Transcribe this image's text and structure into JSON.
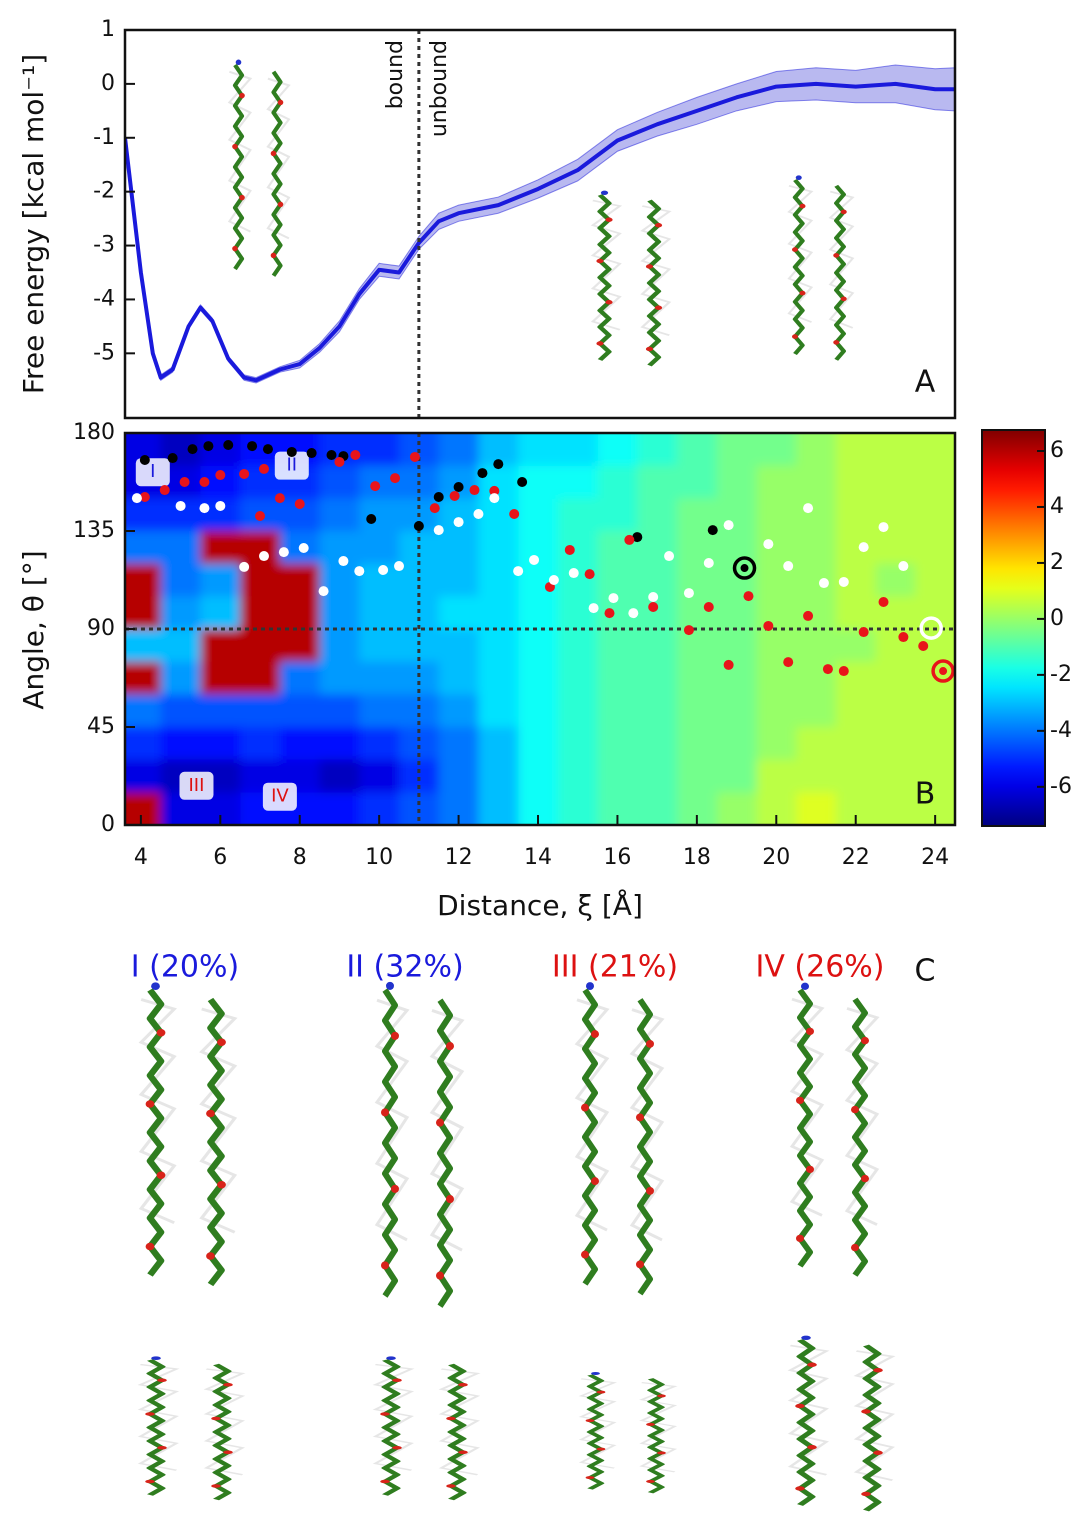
{
  "chart_data": [
    {
      "type": "line",
      "ylabel": "Free energy [kcal mol⁻¹]",
      "panel": "A",
      "annotations": [
        "bound",
        "unbound"
      ],
      "vline": 11,
      "xlim": [
        3.6,
        24.5
      ],
      "ylim": [
        -6.2,
        1
      ],
      "yticks": [
        -5,
        -4,
        -3,
        -2,
        -1,
        0,
        1
      ],
      "x": [
        3.6,
        4.0,
        4.3,
        4.5,
        4.8,
        5.2,
        5.5,
        5.8,
        6.2,
        6.6,
        6.9,
        7.5,
        8.0,
        8.5,
        9.0,
        9.5,
        10.0,
        10.5,
        11.0,
        11.5,
        12.0,
        13.0,
        14.0,
        15.0,
        16.0,
        17.0,
        18.0,
        19.0,
        20.0,
        21.0,
        22.0,
        23.0,
        24.0,
        24.5
      ],
      "values": [
        -1.0,
        -3.5,
        -5.0,
        -5.45,
        -5.3,
        -4.5,
        -4.15,
        -4.4,
        -5.1,
        -5.45,
        -5.5,
        -5.3,
        -5.2,
        -4.9,
        -4.5,
        -3.9,
        -3.45,
        -3.5,
        -2.95,
        -2.55,
        -2.4,
        -2.25,
        -1.95,
        -1.6,
        -1.05,
        -0.75,
        -0.5,
        -0.25,
        -0.05,
        0.0,
        -0.05,
        0.0,
        -0.1,
        -0.1
      ],
      "errors": [
        0.05,
        0.05,
        0.05,
        0.05,
        0.05,
        0.05,
        0.05,
        0.05,
        0.05,
        0.05,
        0.05,
        0.05,
        0.07,
        0.08,
        0.1,
        0.1,
        0.12,
        0.12,
        0.12,
        0.15,
        0.15,
        0.15,
        0.17,
        0.2,
        0.2,
        0.22,
        0.25,
        0.25,
        0.28,
        0.3,
        0.3,
        0.35,
        0.38,
        0.4
      ],
      "color": "#1a1adc",
      "band_color": "#b9b9f0"
    },
    {
      "type": "heatmap",
      "xlabel": "Distance, ξ [Å]",
      "ylabel": "Angle, θ [°]",
      "panel": "B",
      "colormap": "jet",
      "vline": 11,
      "hline": 90,
      "xlim": [
        3.6,
        24.5
      ],
      "ylim": [
        0,
        180
      ],
      "xticks": [
        4,
        6,
        8,
        10,
        12,
        14,
        16,
        18,
        20,
        22,
        24
      ],
      "yticks": [
        0,
        45,
        90,
        135,
        180
      ],
      "zlim": [
        -7.4,
        6.75
      ],
      "zticks": [
        -6,
        -4,
        -2,
        0,
        2,
        4,
        6
      ],
      "regions": [
        {
          "label": "I",
          "x": 4.3,
          "y": 162,
          "color": "#1a1adc"
        },
        {
          "label": "II",
          "x": 7.8,
          "y": 165,
          "color": "#1a1adc"
        },
        {
          "label": "III",
          "x": 5.4,
          "y": 18,
          "color": "#dd1111"
        },
        {
          "label": "IV",
          "x": 7.5,
          "y": 13,
          "color": "#dd1111"
        }
      ],
      "grid_x": [
        4,
        5,
        6,
        7,
        8,
        9,
        10,
        11,
        12,
        13,
        14,
        15,
        16,
        17,
        18,
        19,
        20,
        21,
        22,
        23,
        24
      ],
      "grid_y": [
        172.5,
        157.5,
        142.5,
        127.5,
        112.5,
        97.5,
        82.5,
        67.5,
        52.5,
        37.5,
        22.5,
        7.5
      ],
      "z": [
        [
          -6,
          -6.5,
          -6,
          -5.5,
          -5.5,
          -5,
          -5,
          -4.5,
          -4,
          -3,
          -2.5,
          -2.5,
          -2,
          -1.5,
          -1,
          -0.5,
          -0.5,
          0,
          0.5,
          0.5,
          0.5
        ],
        [
          -6,
          -6,
          -5.5,
          -5,
          -5,
          -4.5,
          -4,
          -4,
          -3.5,
          -2.5,
          -2,
          -2,
          -1.5,
          -1,
          -1,
          -0.5,
          0,
          0,
          0.5,
          0.5,
          0.5
        ],
        [
          -5,
          -5,
          -5,
          -4.5,
          -4.5,
          -4,
          -3.5,
          -3.5,
          -3,
          -2.5,
          -2,
          -1.5,
          -1.5,
          -1,
          -0.5,
          -0.5,
          0,
          0,
          0.5,
          0.5,
          0.5
        ],
        [
          -4,
          -4,
          6,
          6,
          -4,
          -3.5,
          -3.5,
          -3,
          -3,
          -2.5,
          -2,
          -1.5,
          -1,
          -1,
          -0.5,
          -0.5,
          0,
          0,
          0.5,
          0.5,
          0.5
        ],
        [
          6,
          -4,
          -3.5,
          6,
          6,
          -3.5,
          -3,
          -3,
          -3,
          -2.5,
          -2,
          -1.5,
          -1,
          -1,
          -0.5,
          -0.5,
          0,
          0,
          0.5,
          0,
          0.5
        ],
        [
          6,
          -3.5,
          -3,
          6,
          6,
          -3.5,
          -3,
          -3,
          -2.5,
          -2.5,
          -2,
          -1.5,
          -1,
          -1,
          -0.5,
          -0.5,
          0,
          0,
          0.5,
          0.5,
          0.5
        ],
        [
          -3,
          -3,
          6,
          6,
          6,
          -3.5,
          -3,
          -3,
          -3,
          -2.5,
          -2,
          -1.5,
          -1,
          -1,
          -0.5,
          -0.5,
          0,
          0,
          0,
          0.5,
          0.5
        ],
        [
          6,
          -3.5,
          6,
          6,
          -4,
          -3.5,
          -3.5,
          -3.5,
          -3,
          -2.5,
          -2,
          -1.5,
          -1,
          -1,
          -0.5,
          -0.5,
          0,
          0,
          0.5,
          0.5,
          0.5
        ],
        [
          -4,
          -4.5,
          -4.5,
          -4.5,
          -4.5,
          -4.5,
          -4,
          -4,
          -3.5,
          -2.5,
          -2,
          -1.5,
          -1,
          -1,
          -0.5,
          -0.5,
          0,
          0,
          0.5,
          0.5,
          0.5
        ],
        [
          -5,
          -5.5,
          -5.5,
          -5,
          -5.5,
          -5.5,
          -5,
          -4.5,
          -4,
          -3,
          -2,
          -1.5,
          -1,
          -1,
          -0.5,
          -0.5,
          0,
          0.5,
          0.5,
          0.5,
          0.5
        ],
        [
          -6,
          -6.5,
          -6.5,
          -6,
          -6,
          -6.5,
          -6,
          -5,
          -4,
          -3,
          -2,
          -1.5,
          -1,
          -1,
          -0.5,
          -0.5,
          0.5,
          0.5,
          0.5,
          0.5,
          0.5
        ],
        [
          6,
          -6,
          -6,
          -5.5,
          -5.5,
          -5.5,
          -5,
          -4.5,
          -4,
          -3,
          -2,
          -1.5,
          -1,
          -1,
          -0.5,
          0,
          0.5,
          1,
          0.5,
          0.5,
          0.5
        ]
      ],
      "series": [
        {
          "color": "#000000",
          "x": [
            4.1,
            4.8,
            5.3,
            5.7,
            6.2,
            6.8,
            7.2,
            7.8,
            8.3,
            8.8,
            9.1,
            9.8,
            11.0,
            11.5,
            12.0,
            12.6,
            13.0,
            13.6,
            16.5,
            18.4
          ],
          "values": [
            167.6,
            168.5,
            172.6,
            174.0,
            174.5,
            174.0,
            172.6,
            171.3,
            170.8,
            169.9,
            169.4,
            140.5,
            137.3,
            150.6,
            155.2,
            161.6,
            165.7,
            157.5,
            132.2,
            135.4
          ]
        },
        {
          "color": "#e8141a",
          "x": [
            4.1,
            4.6,
            5.1,
            5.6,
            6.0,
            6.6,
            7.1,
            7.5,
            8.0,
            7.0,
            9.0,
            9.4,
            9.9,
            10.4,
            10.9,
            11.4,
            11.9,
            12.4,
            12.9,
            13.4,
            14.3,
            14.8,
            15.3,
            15.8,
            16.3,
            16.9,
            17.8,
            18.3,
            18.8,
            19.3,
            19.8,
            20.3,
            20.8,
            21.3,
            21.7,
            22.2,
            22.7,
            23.2,
            23.7
          ],
          "values": [
            150.6,
            153.8,
            157.5,
            157.5,
            160.7,
            161.2,
            163.5,
            150.1,
            147.4,
            141.9,
            166.7,
            169.9,
            155.6,
            159.3,
            169.0,
            145.5,
            151.1,
            153.8,
            153.4,
            142.8,
            109.3,
            126.3,
            115.2,
            97.3,
            130.9,
            100.1,
            89.5,
            100.1,
            73.5,
            105.1,
            91.4,
            74.8,
            96.0,
            71.6,
            70.7,
            88.6,
            102.4,
            86.3,
            82.2
          ]
        },
        {
          "color": "#ffffff",
          "x": [
            3.9,
            5.0,
            5.6,
            6.0,
            6.6,
            7.1,
            7.6,
            8.1,
            8.6,
            9.1,
            9.5,
            10.1,
            10.5,
            11.5,
            12.0,
            12.5,
            12.9,
            13.5,
            13.9,
            14.4,
            14.9,
            15.4,
            15.9,
            16.4,
            16.9,
            17.3,
            17.8,
            18.3,
            18.8,
            19.8,
            20.3,
            20.8,
            21.2,
            21.7,
            22.2,
            22.7,
            23.2
          ],
          "values": [
            150.1,
            146.5,
            145.5,
            146.5,
            118.5,
            123.5,
            125.3,
            127.2,
            107.4,
            121.2,
            116.6,
            117.1,
            118.9,
            135.4,
            139.1,
            142.8,
            150.1,
            116.6,
            121.7,
            112.5,
            115.7,
            99.6,
            104.2,
            97.3,
            104.7,
            123.5,
            106.5,
            120.3,
            137.7,
            129.0,
            118.9,
            145.5,
            111.1,
            111.6,
            127.6,
            136.8,
            118.9
          ]
        },
        {
          "color": "#000000",
          "ring": true,
          "x": [
            19.2
          ],
          "values": [
            118.0
          ]
        },
        {
          "color": "#ffffff",
          "ring": true,
          "x": [
            23.9
          ],
          "values": [
            90.4
          ]
        },
        {
          "color": "#e8141a",
          "ring": true,
          "x": [
            24.2
          ],
          "values": [
            70.7
          ]
        }
      ]
    }
  ],
  "panel_c": {
    "label": "C",
    "clusters": [
      {
        "label": "I (20%)",
        "color": "#1a1adc"
      },
      {
        "label": "II (32%)",
        "color": "#1a1adc"
      },
      {
        "label": "III (21%)",
        "color": "#dd1111"
      },
      {
        "label": "IV (26%)",
        "color": "#dd1111"
      }
    ]
  }
}
